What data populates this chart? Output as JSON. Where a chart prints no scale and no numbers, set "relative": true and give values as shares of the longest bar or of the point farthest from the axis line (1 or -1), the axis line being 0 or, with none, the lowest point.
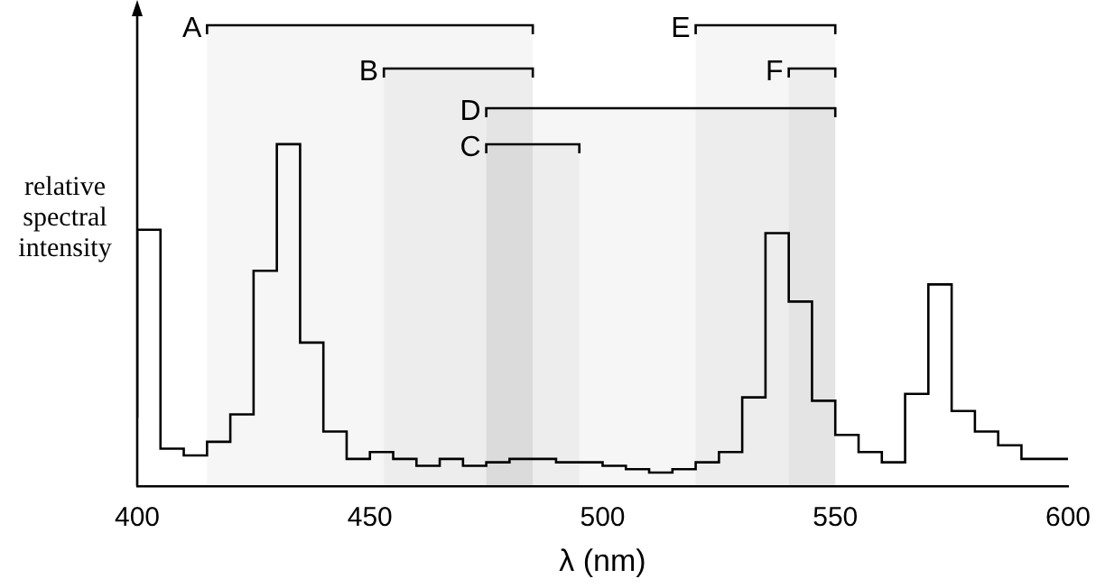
{
  "chart_data": {
    "type": "step",
    "relative": true,
    "xlabel": "λ (nm)",
    "ylabel": "relative spectral intensity",
    "color": "#000000",
    "x": [
      400,
      405,
      410,
      415,
      420,
      425,
      430,
      435,
      440,
      445,
      450,
      455,
      460,
      465,
      470,
      475,
      480,
      485,
      490,
      495,
      500,
      505,
      510,
      515,
      520,
      525,
      530,
      535,
      540,
      545,
      550,
      555,
      560,
      565,
      570,
      575,
      580,
      585,
      590,
      595,
      600
    ],
    "values": [
      0.2,
      0.75,
      0.11,
      0.09,
      0.13,
      0.21,
      0.63,
      1,
      0.42,
      0.16,
      0.08,
      0.1,
      0.08,
      0.06,
      0.08,
      0.06,
      0.07,
      0.08,
      0.08,
      0.07,
      0.07,
      0.06,
      0.05,
      0.04,
      0.05,
      0.07,
      0.1,
      0.26,
      0.74,
      0.54,
      0.25,
      0.15,
      0.1,
      0.07,
      0.27,
      0.59,
      0.22,
      0.16,
      0.12,
      0.08,
      0.08
    ],
    "xlim": [
      400,
      600
    ],
    "xticks": [
      400,
      450,
      500,
      550,
      600
    ],
    "grid": false,
    "legend": false,
    "bands": [
      {
        "axis": "x",
        "from": 415,
        "to": 485,
        "label": "A"
      },
      {
        "axis": "x",
        "from": 453,
        "to": 485,
        "label": "B"
      },
      {
        "axis": "x",
        "from": 475,
        "to": 550,
        "label": "D"
      },
      {
        "axis": "x",
        "from": 475,
        "to": 495,
        "label": "C"
      },
      {
        "axis": "x",
        "from": 520,
        "to": 550,
        "label": "E"
      },
      {
        "axis": "x",
        "from": 540,
        "to": 550,
        "label": "F"
      }
    ]
  }
}
